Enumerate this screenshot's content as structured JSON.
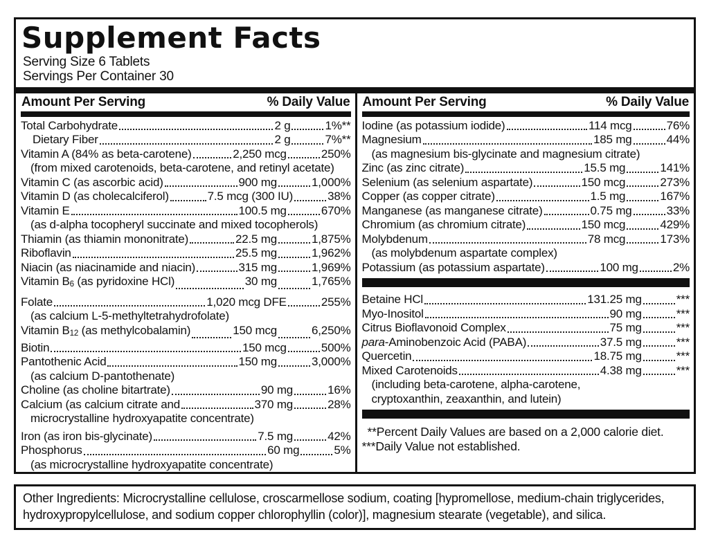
{
  "header": {
    "title": "Supplement Facts",
    "serving_size": "Serving Size 6 Tablets",
    "servings_per_container": "Servings Per Container 30"
  },
  "table": {
    "amount_header": "Amount Per Serving",
    "dv_header": "% Daily Value"
  },
  "left_rows": [
    {
      "name": "Total Carbohydrate",
      "amount": "2 g",
      "dv": "1%**"
    },
    {
      "name": "Dietary Fiber",
      "amount": "2 g",
      "dv": "7%**",
      "indent": true
    },
    {
      "name": "Vitamin A (84% as beta-carotene)",
      "amount": "2,250 mcg",
      "dv": "250%"
    },
    {
      "sub": "(from mixed carotenoids, beta-carotene, and retinyl acetate)"
    },
    {
      "name": "Vitamin C (as ascorbic acid)",
      "amount": "900 mg",
      "dv": "1,000%"
    },
    {
      "name": "Vitamin D (as cholecalciferol)",
      "amount": "7.5 mcg (300 IU)",
      "dv": "38%"
    },
    {
      "name": "Vitamin E",
      "amount": "100.5 mg",
      "dv": "670%"
    },
    {
      "sub": "(as d-alpha tocopheryl succinate and mixed tocopherols)"
    },
    {
      "name": "Thiamin (as thiamin mononitrate)",
      "amount": "22.5 mg",
      "dv": "1,875%"
    },
    {
      "name": "Riboflavin",
      "amount": "25.5 mg",
      "dv": "1,962%"
    },
    {
      "name": "Niacin (as niacinamide and niacin)",
      "amount": "315 mg",
      "dv": "1,969%"
    },
    {
      "parts": [
        {
          "t": "text",
          "v": "Vitamin B"
        },
        {
          "t": "sub",
          "v": "6"
        },
        {
          "t": "text",
          "v": " (as pyridoxine HCl)"
        }
      ],
      "amount": "30 mg",
      "dv": "1,765%"
    },
    {
      "name": "Folate",
      "amount": "1,020 mcg DFE",
      "dv": "255%",
      "gap": true
    },
    {
      "sub": "(as calcium L-5-methyltetrahydrofolate)"
    },
    {
      "parts": [
        {
          "t": "text",
          "v": "Vitamin B"
        },
        {
          "t": "sub",
          "v": "12"
        },
        {
          "t": "text",
          "v": " (as methylcobalamin)"
        }
      ],
      "amount": "150 mcg",
      "dv": "6,250%"
    },
    {
      "name": "Biotin",
      "amount": "150 mcg",
      "dv": "500%"
    },
    {
      "name": "Pantothenic Acid",
      "amount": "150 mg",
      "dv": "3,000%"
    },
    {
      "sub": "(as calcium D-pantothenate)"
    },
    {
      "name": "Choline (as choline bitartrate)",
      "amount": "90 mg",
      "dv": "16%"
    },
    {
      "name": "Calcium (as calcium citrate and",
      "amount": "370 mg",
      "dv": "28%"
    },
    {
      "sub": "microcrystalline hydroxyapatite concentrate)"
    },
    {
      "name": "Iron (as iron bis-glycinate)",
      "amount": "7.5 mg",
      "dv": "42%",
      "gap": true
    },
    {
      "name": "Phosphorus",
      "amount": "60 mg",
      "dv": "5%"
    },
    {
      "sub": "(as microcrystalline hydroxyapatite concentrate)"
    }
  ],
  "right_rows_minerals": [
    {
      "name": "Iodine (as potassium iodide)",
      "amount": "114 mcg",
      "dv": "76%"
    },
    {
      "name": "Magnesium",
      "amount": "185 mg",
      "dv": "44%"
    },
    {
      "sub": "(as magnesium bis-glycinate and magnesium citrate)"
    },
    {
      "name": "Zinc (as zinc citrate)",
      "amount": "15.5 mg",
      "dv": "141%"
    },
    {
      "name": "Selenium (as selenium aspartate)",
      "amount": "150 mcg",
      "dv": "273%"
    },
    {
      "name": "Copper (as copper citrate)",
      "amount": "1.5 mg",
      "dv": "167%"
    },
    {
      "name": "Manganese (as manganese citrate)",
      "amount": "0.75 mg",
      "dv": "33%"
    },
    {
      "name": "Chromium (as chromium citrate)",
      "amount": "150 mcg",
      "dv": "429%"
    },
    {
      "name": "Molybdenum",
      "amount": "78 mcg",
      "dv": "173%"
    },
    {
      "sub": "(as molybdenum aspartate complex)"
    },
    {
      "name": "Potassium (as potassium aspartate)",
      "amount": "100 mg",
      "dv": "2%"
    }
  ],
  "right_rows_other": [
    {
      "name": "Betaine HCl",
      "amount": "131.25 mg",
      "dv": "***"
    },
    {
      "name": "Myo-Inositol",
      "amount": "90 mg",
      "dv": "***"
    },
    {
      "name": "Citrus Bioflavonoid Complex",
      "amount": "75 mg",
      "dv": "***"
    },
    {
      "parts": [
        {
          "t": "i",
          "v": "para"
        },
        {
          "t": "text",
          "v": "-Aminobenzoic Acid (PABA)"
        }
      ],
      "amount": "37.5 mg",
      "dv": "***"
    },
    {
      "name": "Quercetin",
      "amount": "18.75 mg",
      "dv": "***"
    },
    {
      "name": "Mixed Carotenoids",
      "amount": "4.38 mg",
      "dv": "***"
    },
    {
      "sub": "(including beta-carotene, alpha-carotene,"
    },
    {
      "sub": "cryptoxanthin, zeaxanthin, and lutein)"
    }
  ],
  "footnotes": [
    "**Percent Daily Values are based on a 2,000 calorie diet.",
    "***Daily Value not established."
  ],
  "other_ingredients": "Other Ingredients: Microcrystalline cellulose, croscarmellose sodium, coating [hypromellose, medium-chain triglycerides, hydroxypropylcellulose, and sodium copper chlorophyllin (color)], magnesium stearate (vegetable), and silica.",
  "colors": {
    "ink": "#111111",
    "background": "#ffffff"
  }
}
